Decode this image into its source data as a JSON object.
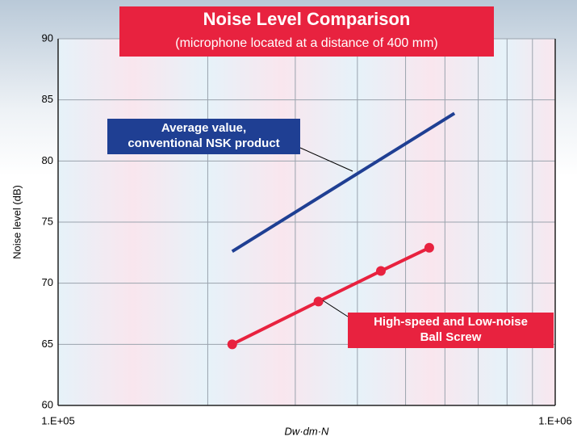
{
  "chart_data": {
    "type": "line",
    "title": "Noise Level Comparison",
    "subtitle": "(microphone located at a distance of 400 mm)",
    "y_label": "Noise level (dB)",
    "x_label": "Dw·dm·N",
    "log_x": true,
    "xlim": [
      100000,
      1000000
    ],
    "xticks": [
      {
        "value": 100000,
        "label": "1.E+05"
      },
      {
        "value": 1000000,
        "label": "1.E+06"
      }
    ],
    "x_minor_grid": [
      200000,
      300000,
      400000,
      500000,
      600000,
      700000,
      800000,
      900000
    ],
    "ylim": [
      60,
      90
    ],
    "yticks": [
      60,
      65,
      70,
      75,
      80,
      85,
      90
    ],
    "grid": true,
    "series": [
      {
        "name": [
          "Average value,",
          "conventional NSK product"
        ],
        "color": "#1f3f93",
        "markers": false,
        "x": [
          224000,
          627000
        ],
        "values": [
          72.6,
          83.9
        ]
      },
      {
        "name": [
          "High-speed and Low-noise",
          "Ball Screw"
        ],
        "color": "#e8223f",
        "markers": true,
        "x": [
          224000,
          334000,
          446000,
          558000
        ],
        "values": [
          65,
          68.5,
          71,
          72.9
        ]
      }
    ]
  }
}
